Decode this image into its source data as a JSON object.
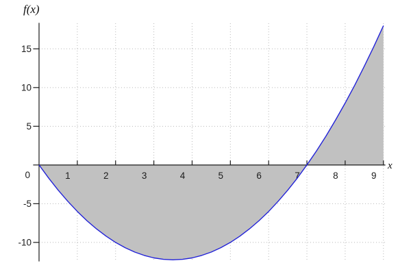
{
  "figure": {
    "ylabel": "f(x)",
    "xlabel": "x",
    "origin_label": "0"
  },
  "chart_data": {
    "type": "area",
    "title": "",
    "xlabel": "x",
    "ylabel": "f(x)",
    "function": "f(x) = x^2 - 7x",
    "domain_drawn": [
      0,
      9
    ],
    "roots": [
      0,
      7
    ],
    "vertex": [
      3.5,
      -12.25
    ],
    "end_point": [
      9,
      18
    ],
    "shaded_region": "area between curve and x-axis from x=0 to x=9, closed by vertical line at x=9",
    "x_range": [
      0,
      9.04
    ],
    "y_range": [
      -12.4,
      18.3
    ],
    "x_ticks": [
      1,
      2,
      3,
      4,
      5,
      6,
      7,
      8,
      9
    ],
    "y_ticks": [
      -10,
      -5,
      5,
      10,
      15
    ],
    "grid": true,
    "curve_color": "#2222d8",
    "area_color": "#c1c1c1",
    "axis_color": "#1a1a1a",
    "grid_color": "#b8b8b8",
    "samples": [
      [
        0,
        0
      ],
      [
        0.25,
        -1.6875
      ],
      [
        0.5,
        -3.25
      ],
      [
        0.75,
        -4.6875
      ],
      [
        1,
        -6
      ],
      [
        1.25,
        -7.1875
      ],
      [
        1.5,
        -8.25
      ],
      [
        1.75,
        -9.1875
      ],
      [
        2,
        -10
      ],
      [
        2.25,
        -10.6875
      ],
      [
        2.5,
        -11.25
      ],
      [
        2.75,
        -11.6875
      ],
      [
        3,
        -12
      ],
      [
        3.25,
        -12.1875
      ],
      [
        3.5,
        -12.25
      ],
      [
        3.75,
        -12.1875
      ],
      [
        4,
        -12
      ],
      [
        4.25,
        -11.6875
      ],
      [
        4.5,
        -11.25
      ],
      [
        4.75,
        -10.6875
      ],
      [
        5,
        -10
      ],
      [
        5.25,
        -9.1875
      ],
      [
        5.5,
        -8.25
      ],
      [
        5.75,
        -7.1875
      ],
      [
        6,
        -6
      ],
      [
        6.25,
        -4.6875
      ],
      [
        6.5,
        -3.25
      ],
      [
        6.75,
        -1.6875
      ],
      [
        7,
        0
      ],
      [
        7.25,
        1.8125
      ],
      [
        7.5,
        3.75
      ],
      [
        7.75,
        5.8125
      ],
      [
        8,
        8
      ],
      [
        8.25,
        10.3125
      ],
      [
        8.5,
        12.75
      ],
      [
        8.75,
        15.3125
      ],
      [
        9,
        18
      ]
    ]
  }
}
